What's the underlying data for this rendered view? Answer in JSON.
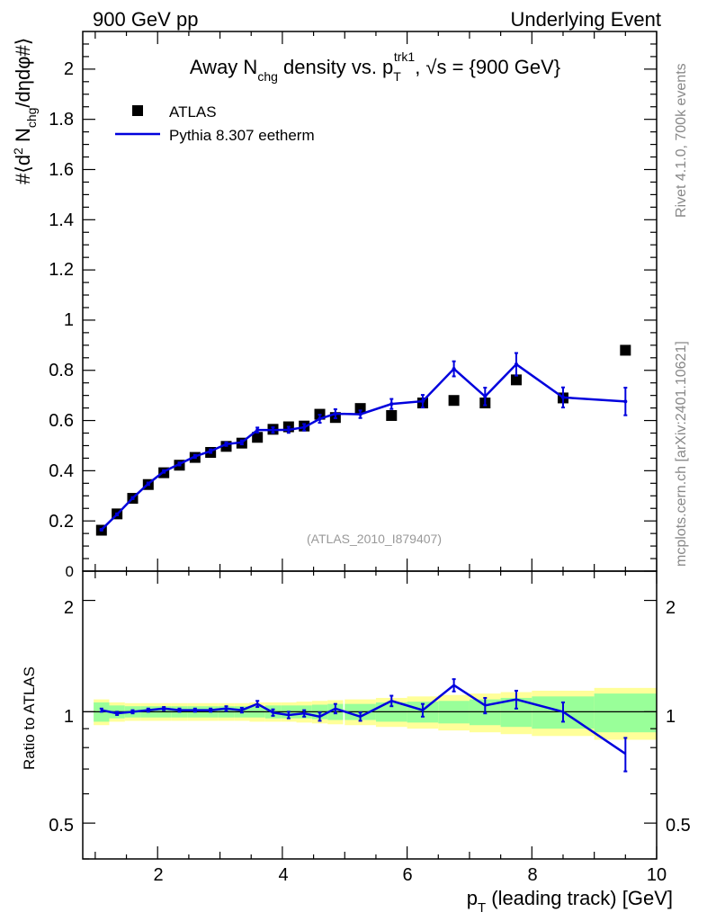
{
  "header": {
    "left": "900 GeV pp",
    "right": "Underlying Event"
  },
  "side": {
    "rivet": "Rivet 4.1.0,  700k events",
    "mcplots": "mcplots.cern.ch [arXiv:2401.10621]"
  },
  "colors": {
    "mc": "#0000dd",
    "data": "#000000",
    "band_inner": "#99ff99",
    "band_outer": "#ffff99"
  },
  "chart_data": {
    "type": "scatter",
    "title": "Away N_chg density vs. p_T^trk1, √s = {900 GeV}",
    "title_parts": {
      "pre": "Away N",
      "sub1": "chg",
      "mid": " density vs. p",
      "sub2": "T",
      "sup2": "trk1",
      "post": ", √s = {900 GeV}"
    },
    "ylabel_main": "#⟨d² N_chg/dηdφ#⟩",
    "ylabel_main_parts": {
      "a": "#⟨d",
      "b": "2",
      "c": " N",
      "d": "chg",
      "e": "/dηdφ#⟩"
    },
    "ylabel_ratio": "Ratio to ATLAS",
    "xlabel": "p_T (leading track) [GeV]",
    "xlabel_parts": {
      "a": "p",
      "b": "T",
      "c": " (leading track) [GeV]"
    },
    "watermark": "(ATLAS_2010_I879407)",
    "xlim": [
      0.8,
      10.0
    ],
    "ylim_main": [
      0,
      2.15
    ],
    "ylim_ratio": [
      0.4,
      2.4
    ],
    "xticks": [
      2,
      4,
      6,
      8,
      10
    ],
    "xtick_labels": [
      "2",
      "4",
      "6",
      "8",
      "10"
    ],
    "yticks_main": [
      0.2,
      0.4,
      0.6,
      0.8,
      1,
      1.2,
      1.4,
      1.6,
      1.8,
      2
    ],
    "ytick_main_labels": [
      "0.2",
      "0.4",
      "0.6",
      "0.8",
      "1",
      "1.2",
      "1.4",
      "1.6",
      "1.8",
      "2"
    ],
    "ytick_main_zero": "0",
    "yticks_ratio": [
      0.5,
      1,
      2
    ],
    "ytick_ratio_labels": [
      "0.5",
      "1",
      "2"
    ],
    "legend": [
      {
        "label": "ATLAS",
        "style": "square"
      },
      {
        "label": "Pythia 8.307 eetherm",
        "style": "line"
      }
    ],
    "atlas": {
      "x": [
        1.1,
        1.35,
        1.6,
        1.85,
        2.1,
        2.35,
        2.6,
        2.85,
        3.1,
        3.35,
        3.6,
        3.85,
        4.1,
        4.35,
        4.6,
        4.85,
        5.25,
        5.75,
        6.25,
        6.75,
        7.25,
        7.75,
        8.5,
        9.5
      ],
      "y": [
        0.163,
        0.228,
        0.29,
        0.345,
        0.392,
        0.422,
        0.453,
        0.473,
        0.497,
        0.51,
        0.533,
        0.565,
        0.575,
        0.578,
        0.625,
        0.612,
        0.648,
        0.62,
        0.67,
        0.68,
        0.67,
        0.762,
        0.69,
        0.88
      ],
      "xerr": [
        0.125,
        0.125,
        0.125,
        0.125,
        0.125,
        0.125,
        0.125,
        0.125,
        0.125,
        0.125,
        0.125,
        0.125,
        0.125,
        0.125,
        0.125,
        0.125,
        0.25,
        0.25,
        0.25,
        0.25,
        0.25,
        0.25,
        0.5,
        0.5
      ],
      "rel_stat": [
        0.06,
        0.04,
        0.035,
        0.035,
        0.035,
        0.035,
        0.035,
        0.035,
        0.035,
        0.035,
        0.035,
        0.04,
        0.04,
        0.04,
        0.045,
        0.05,
        0.05,
        0.06,
        0.065,
        0.07,
        0.08,
        0.09,
        0.1,
        0.12
      ],
      "rel_tot": [
        0.08,
        0.06,
        0.055,
        0.055,
        0.055,
        0.055,
        0.055,
        0.055,
        0.055,
        0.055,
        0.06,
        0.06,
        0.06,
        0.065,
        0.07,
        0.075,
        0.08,
        0.09,
        0.1,
        0.11,
        0.12,
        0.13,
        0.14,
        0.16
      ]
    },
    "pythia": {
      "x": [
        1.1,
        1.35,
        1.6,
        1.85,
        2.1,
        2.35,
        2.6,
        2.85,
        3.1,
        3.35,
        3.6,
        3.85,
        4.1,
        4.35,
        4.6,
        4.85,
        5.25,
        5.75,
        6.25,
        6.75,
        7.25,
        7.75,
        8.5,
        9.5
      ],
      "y": [
        0.165,
        0.226,
        0.291,
        0.348,
        0.397,
        0.427,
        0.457,
        0.478,
        0.506,
        0.513,
        0.562,
        0.562,
        0.563,
        0.573,
        0.607,
        0.627,
        0.625,
        0.666,
        0.677,
        0.806,
        0.696,
        0.824,
        0.692,
        0.676
      ],
      "yerr": [
        0.003,
        0.004,
        0.004,
        0.005,
        0.005,
        0.006,
        0.006,
        0.007,
        0.007,
        0.008,
        0.01,
        0.011,
        0.012,
        0.013,
        0.016,
        0.018,
        0.015,
        0.02,
        0.025,
        0.03,
        0.035,
        0.045,
        0.04,
        0.055
      ],
      "ratio": [
        1.01,
        0.99,
        1.0,
        1.01,
        1.02,
        1.01,
        1.01,
        1.01,
        1.02,
        1.01,
        1.05,
        0.995,
        0.98,
        0.99,
        0.97,
        1.02,
        0.97,
        1.07,
        1.01,
        1.18,
        1.04,
        1.08,
        1.0,
        0.77
      ],
      "ratio_err": [
        0.01,
        0.01,
        0.01,
        0.01,
        0.01,
        0.01,
        0.01,
        0.01,
        0.015,
        0.015,
        0.02,
        0.02,
        0.02,
        0.02,
        0.025,
        0.03,
        0.025,
        0.035,
        0.04,
        0.045,
        0.05,
        0.06,
        0.06,
        0.08
      ]
    }
  }
}
